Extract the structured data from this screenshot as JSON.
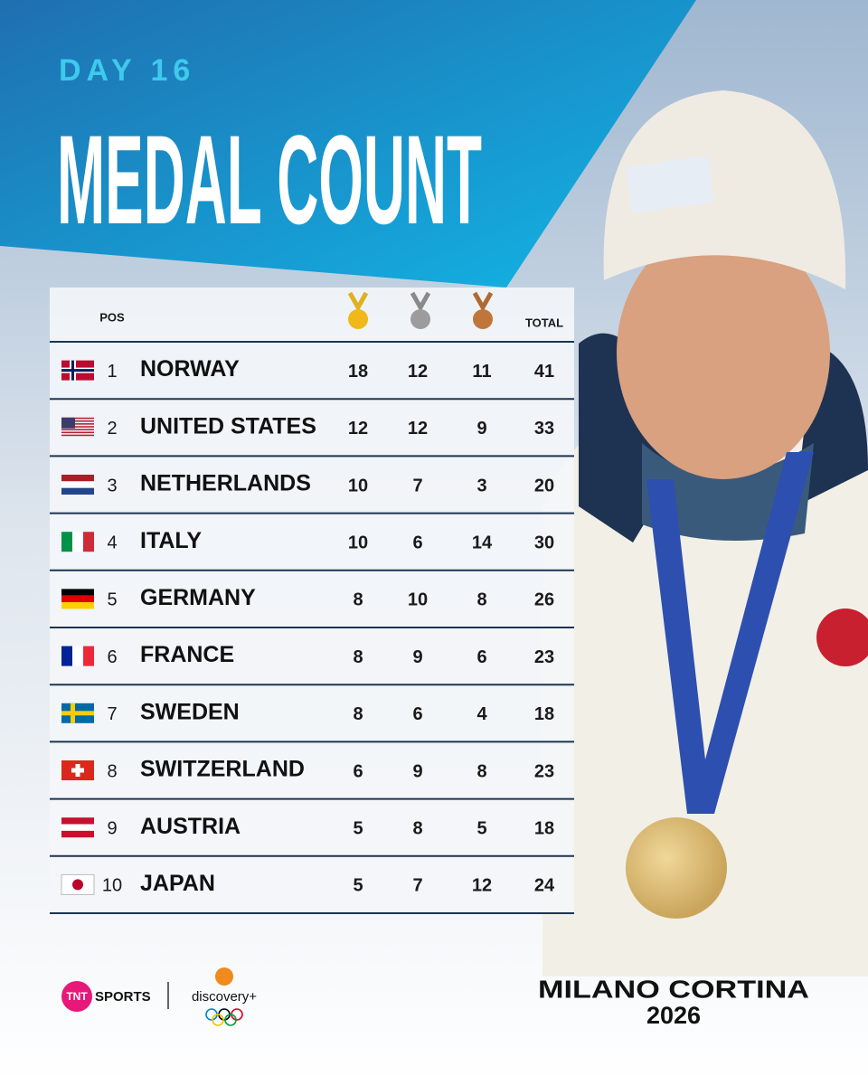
{
  "header": {
    "day": "DAY 16",
    "title": "MEDAL COUNT"
  },
  "table": {
    "columns": {
      "pos": "POS",
      "total": "TOTAL"
    },
    "rows": [
      {
        "pos": "1",
        "country": "NORWAY",
        "gold": "18",
        "silver": "12",
        "bronze": "11",
        "total": "41"
      },
      {
        "pos": "2",
        "country": "UNITED STATES",
        "gold": "12",
        "silver": "12",
        "bronze": "9",
        "total": "33"
      },
      {
        "pos": "3",
        "country": "NETHERLANDS",
        "gold": "10",
        "silver": "7",
        "bronze": "3",
        "total": "20"
      },
      {
        "pos": "4",
        "country": "ITALY",
        "gold": "10",
        "silver": "6",
        "bronze": "14",
        "total": "30"
      },
      {
        "pos": "5",
        "country": "GERMANY",
        "gold": "8",
        "silver": "10",
        "bronze": "8",
        "total": "26"
      },
      {
        "pos": "6",
        "country": "FRANCE",
        "gold": "8",
        "silver": "9",
        "bronze": "6",
        "total": "23"
      },
      {
        "pos": "7",
        "country": "SWEDEN",
        "gold": "8",
        "silver": "6",
        "bronze": "4",
        "total": "18"
      },
      {
        "pos": "8",
        "country": "SWITZERLAND",
        "gold": "6",
        "silver": "9",
        "bronze": "8",
        "total": "23"
      },
      {
        "pos": "9",
        "country": "AUSTRIA",
        "gold": "5",
        "silver": "8",
        "bronze": "5",
        "total": "18"
      },
      {
        "pos": "10",
        "country": "JAPAN",
        "gold": "5",
        "silver": "7",
        "bronze": "12",
        "total": "24"
      }
    ]
  },
  "footer": {
    "tnt": "TNT",
    "sports": "SPORTS",
    "discovery": "discovery+",
    "event": "MILANO CORTINA",
    "year": "2026"
  }
}
